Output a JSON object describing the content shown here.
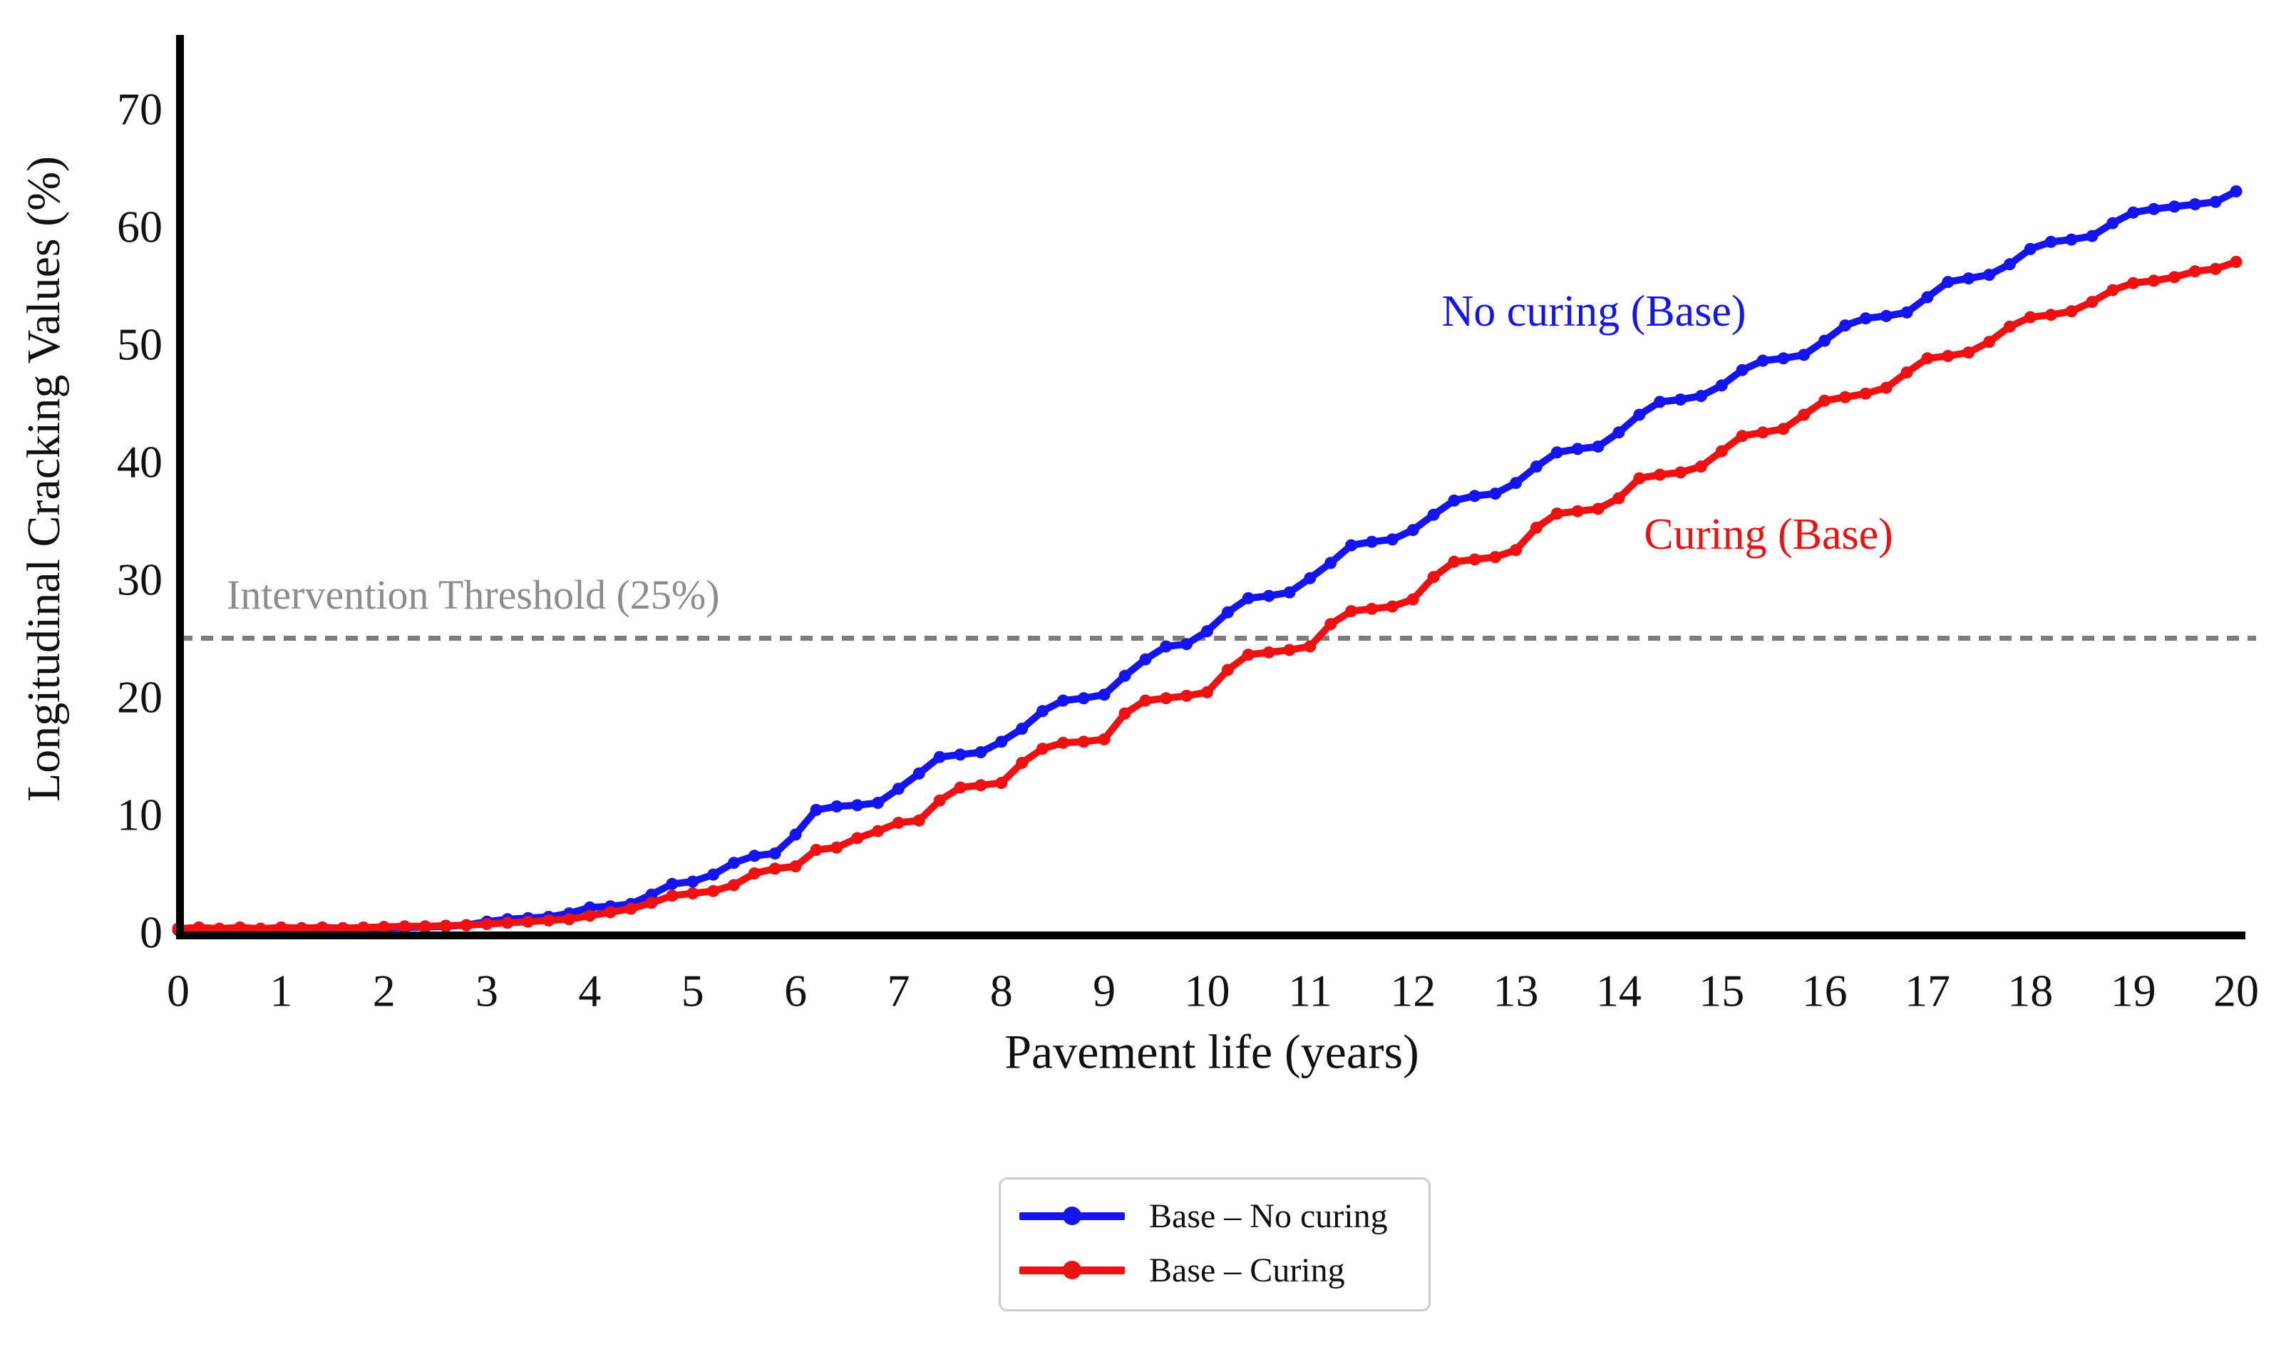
{
  "figure": {
    "background": "#ffffff",
    "text_color": "#111111"
  },
  "chart_data": {
    "type": "line",
    "title": "",
    "xlabel": "Pavement life (years)",
    "ylabel": "Longitudinal Cracking Values (%)",
    "xlim": [
      0,
      20
    ],
    "ylim": [
      0,
      75
    ],
    "grid": false,
    "x_ticks": [
      0,
      1,
      2,
      3,
      4,
      5,
      6,
      7,
      8,
      9,
      10,
      11,
      12,
      13,
      14,
      15,
      16,
      17,
      18,
      19,
      20
    ],
    "y_ticks": [
      0,
      10,
      20,
      30,
      40,
      50,
      60,
      70
    ],
    "threshold": {
      "value": 25,
      "label": "Intervention Threshold (25%)",
      "label_color": "#8c8c8c",
      "line_color": "#7d7d7d",
      "style": "dashed"
    },
    "legend": {
      "position": "bottom-center",
      "border_color": "#cccccc"
    },
    "x": [
      0,
      0.2,
      0.4,
      0.6,
      0.8,
      1,
      1.2,
      1.4,
      1.6,
      1.8,
      2,
      2.2,
      2.4,
      2.6,
      2.8,
      3,
      3.2,
      3.4,
      3.6,
      3.8,
      4,
      4.2,
      4.4,
      4.6,
      4.8,
      5,
      5.2,
      5.4,
      5.6,
      5.8,
      6,
      6.2,
      6.4,
      6.6,
      6.8,
      7,
      7.2,
      7.4,
      7.6,
      7.8,
      8,
      8.2,
      8.4,
      8.6,
      8.8,
      9,
      9.2,
      9.4,
      9.6,
      9.8,
      10,
      10.2,
      10.4,
      10.6,
      10.8,
      11,
      11.2,
      11.4,
      11.6,
      11.8,
      12,
      12.2,
      12.4,
      12.6,
      12.8,
      13,
      13.2,
      13.4,
      13.6,
      13.8,
      14,
      14.2,
      14.4,
      14.6,
      14.8,
      15,
      15.2,
      15.4,
      15.6,
      15.8,
      16,
      16.2,
      16.4,
      16.6,
      16.8,
      17,
      17.2,
      17.4,
      17.6,
      17.8,
      18,
      18.2,
      18.4,
      18.6,
      18.8,
      19,
      19.2,
      19.4,
      19.6,
      19.8,
      20
    ],
    "series": [
      {
        "name": "Base – No curing",
        "inline_label": "No curing (Base)",
        "color": "#1414f0",
        "values": [
          0.2,
          0.3,
          0.2,
          0.3,
          0.2,
          0.3,
          0.25,
          0.3,
          0.25,
          0.3,
          0.35,
          0.4,
          0.45,
          0.5,
          0.6,
          0.9,
          1.1,
          1.2,
          1.3,
          1.6,
          2.1,
          2.2,
          2.4,
          3.2,
          4.1,
          4.3,
          4.9,
          5.9,
          6.5,
          6.7,
          8.3,
          10.4,
          10.7,
          10.8,
          11.0,
          12.2,
          13.5,
          14.9,
          15.1,
          15.3,
          16.2,
          17.3,
          18.8,
          19.7,
          19.9,
          20.2,
          21.8,
          23.2,
          24.3,
          24.5,
          25.6,
          27.2,
          28.4,
          28.6,
          28.9,
          30.1,
          31.4,
          32.9,
          33.2,
          33.4,
          34.2,
          35.5,
          36.7,
          37.1,
          37.3,
          38.2,
          39.6,
          40.8,
          41.1,
          41.3,
          42.5,
          44.0,
          45.1,
          45.3,
          45.6,
          46.5,
          47.8,
          48.6,
          48.8,
          49.1,
          50.3,
          51.6,
          52.2,
          52.4,
          52.7,
          54.0,
          55.3,
          55.6,
          55.9,
          56.8,
          58.1,
          58.7,
          58.9,
          59.2,
          60.3,
          61.2,
          61.5,
          61.7,
          61.9,
          62.1,
          63.0
        ]
      },
      {
        "name": "Base – Curing",
        "inline_label": "Curing (Base)",
        "color": "#ee1111",
        "values": [
          0.3,
          0.4,
          0.3,
          0.4,
          0.3,
          0.4,
          0.35,
          0.4,
          0.35,
          0.4,
          0.45,
          0.5,
          0.5,
          0.55,
          0.6,
          0.7,
          0.8,
          0.9,
          1.0,
          1.1,
          1.4,
          1.7,
          2.0,
          2.5,
          3.1,
          3.3,
          3.5,
          4.0,
          5.0,
          5.4,
          5.6,
          7.0,
          7.2,
          8.0,
          8.6,
          9.3,
          9.5,
          11.2,
          12.3,
          12.5,
          12.7,
          14.4,
          15.6,
          16.1,
          16.2,
          16.4,
          18.6,
          19.7,
          19.9,
          20.1,
          20.4,
          22.3,
          23.6,
          23.8,
          24.0,
          24.3,
          26.2,
          27.3,
          27.5,
          27.7,
          28.3,
          30.2,
          31.5,
          31.7,
          31.9,
          32.5,
          34.4,
          35.6,
          35.8,
          36.0,
          36.9,
          38.6,
          38.9,
          39.1,
          39.6,
          40.9,
          42.2,
          42.5,
          42.8,
          44.0,
          45.2,
          45.5,
          45.8,
          46.3,
          47.6,
          48.8,
          49.0,
          49.3,
          50.2,
          51.5,
          52.3,
          52.5,
          52.8,
          53.6,
          54.6,
          55.2,
          55.4,
          55.7,
          56.2,
          56.4,
          57.0
        ]
      }
    ]
  }
}
